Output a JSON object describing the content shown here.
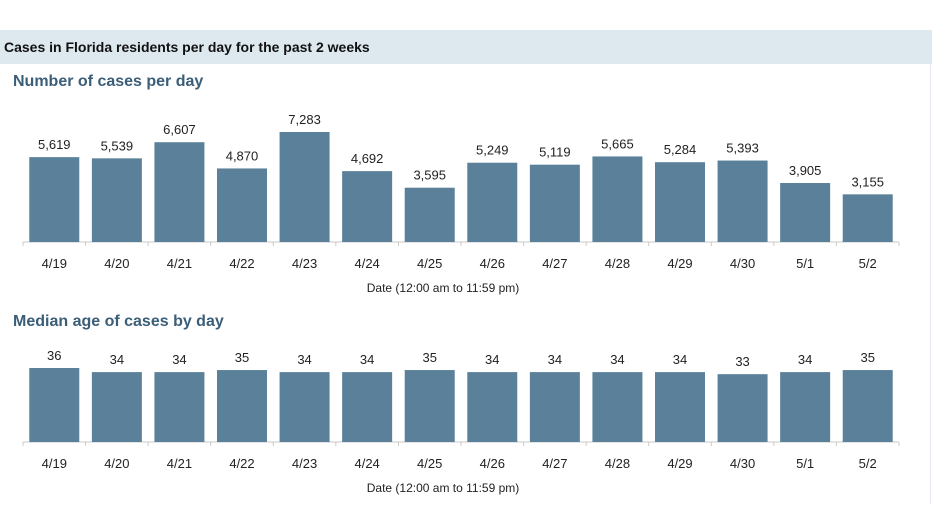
{
  "header": {
    "title": "Cases in Florida residents per day for the past 2 weeks"
  },
  "colors": {
    "bar": "#5a8199",
    "section_title": "#3b5e78",
    "header_band": "#dde8ef"
  },
  "chart_data": [
    {
      "type": "bar",
      "title": "Number of cases per day",
      "xlabel": "Date (12:00 am to 11:59 pm)",
      "ylabel": "",
      "ylim": [
        0,
        7283
      ],
      "grid": false,
      "categories": [
        "4/19",
        "4/20",
        "4/21",
        "4/22",
        "4/23",
        "4/24",
        "4/25",
        "4/26",
        "4/27",
        "4/28",
        "4/29",
        "4/30",
        "5/1",
        "5/2"
      ],
      "values": [
        5619,
        5539,
        6607,
        4870,
        7283,
        4692,
        3595,
        5249,
        5119,
        5665,
        5284,
        5393,
        3905,
        3155
      ],
      "value_labels": [
        "5,619",
        "5,539",
        "6,607",
        "4,870",
        "7,283",
        "4,692",
        "3,595",
        "5,249",
        "5,119",
        "5,665",
        "5,284",
        "5,393",
        "3,905",
        "3,155"
      ]
    },
    {
      "type": "bar",
      "title": "Median age of cases by day",
      "xlabel": "Date (12:00 am to 11:59 pm)",
      "ylabel": "",
      "ylim": [
        0,
        36
      ],
      "grid": false,
      "categories": [
        "4/19",
        "4/20",
        "4/21",
        "4/22",
        "4/23",
        "4/24",
        "4/25",
        "4/26",
        "4/27",
        "4/28",
        "4/29",
        "4/30",
        "5/1",
        "5/2"
      ],
      "values": [
        36,
        34,
        34,
        35,
        34,
        34,
        35,
        34,
        34,
        34,
        34,
        33,
        34,
        35
      ],
      "value_labels": [
        "36",
        "34",
        "34",
        "35",
        "34",
        "34",
        "35",
        "34",
        "34",
        "34",
        "34",
        "33",
        "34",
        "35"
      ]
    }
  ]
}
